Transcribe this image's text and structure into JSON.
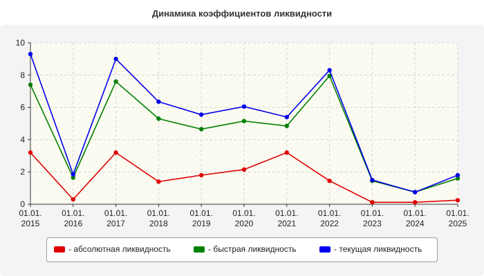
{
  "chart_data": {
    "type": "line",
    "title": "Динамика коэффициентов ликвидности",
    "categories": [
      "01.01.2015",
      "01.01.2016",
      "01.01.2017",
      "01.01.2018",
      "01.01.2019",
      "01.01.2020",
      "01.01.2021",
      "01.01.2022",
      "01.01.2023",
      "01.01.2024",
      "01.01.2025"
    ],
    "tick_labels": [
      [
        "01.01.",
        "2015"
      ],
      [
        "01.01.",
        "2016"
      ],
      [
        "01.01.",
        "2017"
      ],
      [
        "01.01.",
        "2018"
      ],
      [
        "01.01.",
        "2019"
      ],
      [
        "01.01.",
        "2020"
      ],
      [
        "01.01.",
        "2021"
      ],
      [
        "01.01.",
        "2022"
      ],
      [
        "01.01.",
        "2023"
      ],
      [
        "01.01.",
        "2024"
      ],
      [
        "01.01.",
        "2025"
      ]
    ],
    "ylim": [
      0,
      10
    ],
    "yticks": [
      0,
      2,
      4,
      6,
      8,
      10
    ],
    "grid": true,
    "legend_position": "bottom",
    "series": [
      {
        "name": "абсолютная ликвидность",
        "legend_label": "- абсолютная ликвидность",
        "color": "#e00000",
        "values": [
          3.2,
          0.3,
          3.2,
          1.4,
          1.8,
          2.15,
          3.2,
          1.45,
          0.12,
          0.12,
          0.25
        ]
      },
      {
        "name": "быстрая ликвидность",
        "legend_label": "- быстрая ликвидность",
        "color": "#008000",
        "values": [
          7.4,
          1.65,
          7.6,
          5.3,
          4.65,
          5.15,
          4.85,
          7.95,
          1.45,
          0.75,
          1.6
        ]
      },
      {
        "name": "текущая ликвидность",
        "legend_label": "- текущая ликвидность",
        "color": "#0000ee",
        "values": [
          9.3,
          1.85,
          9.0,
          6.35,
          5.55,
          6.05,
          5.4,
          8.3,
          1.5,
          0.75,
          1.8
        ]
      }
    ]
  }
}
